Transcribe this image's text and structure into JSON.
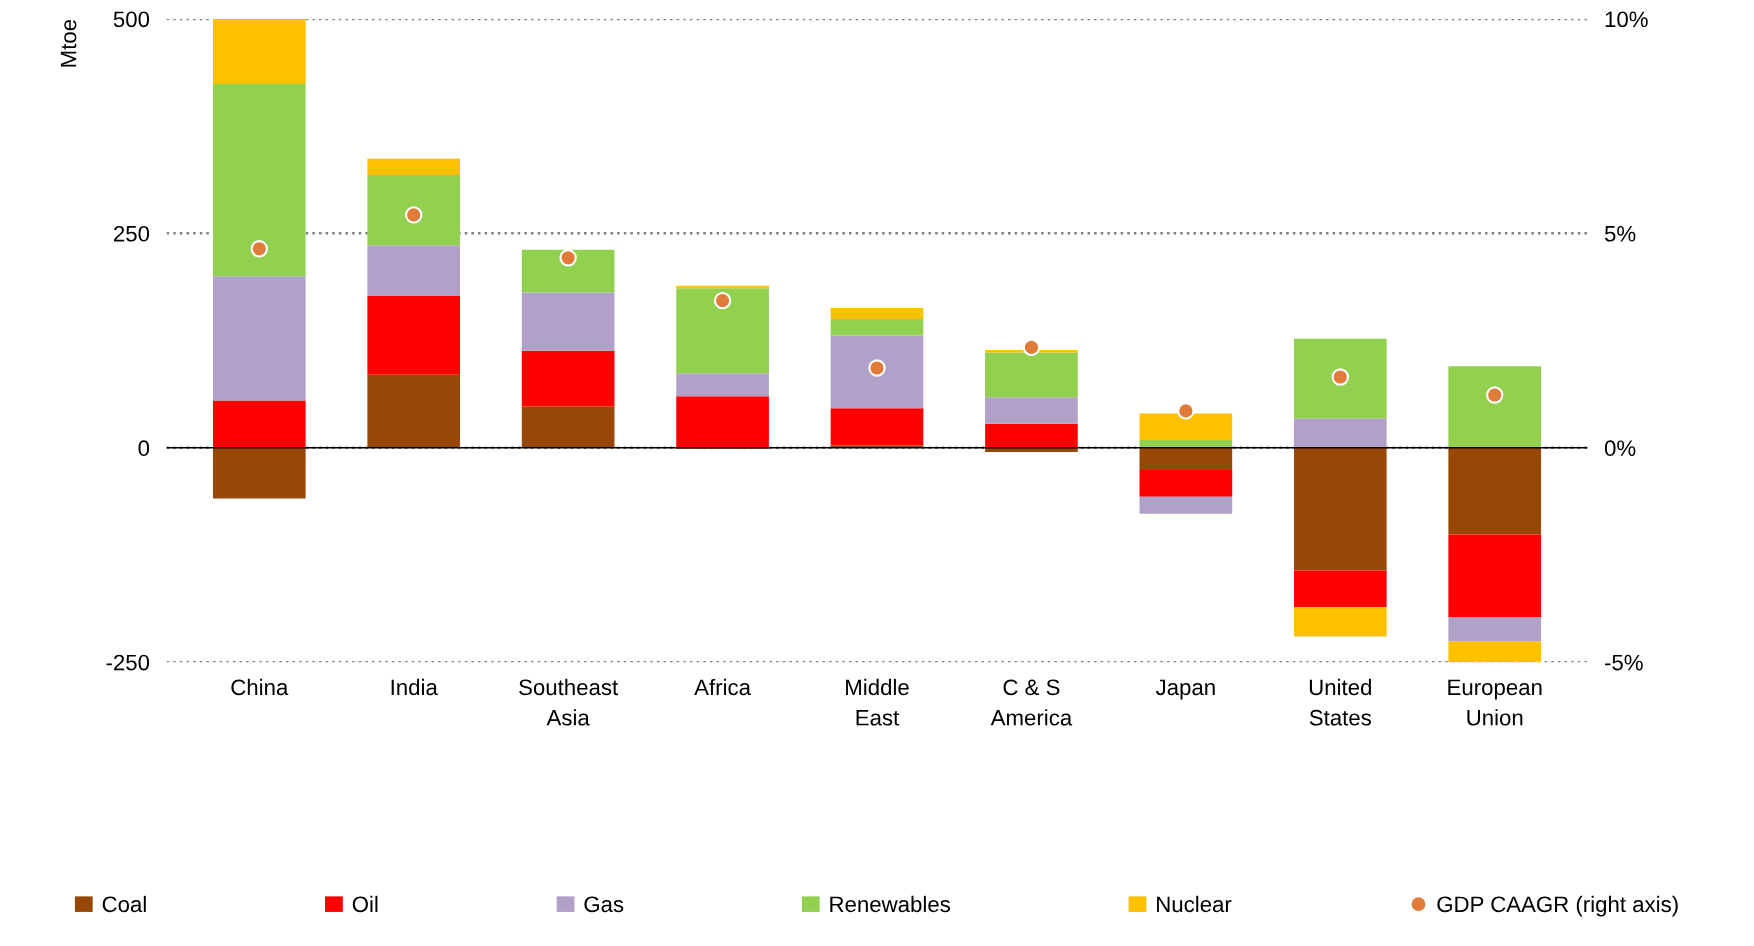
{
  "chart_data": {
    "type": "bar",
    "stacked": true,
    "ylabel": "Mtoe",
    "categories": [
      "China",
      "India",
      "Southeast\nAsia",
      "Africa",
      "Middle\nEast",
      "C & S\nAmerica",
      "Japan",
      "United\nStates",
      "European\nUnion"
    ],
    "series": [
      {
        "name": "Coal",
        "color": "#974706",
        "values": [
          -59,
          85,
          48,
          -1,
          3,
          -5,
          -26,
          -143,
          -101
        ]
      },
      {
        "name": "Oil",
        "color": "#ff0000",
        "values": [
          55,
          92,
          65,
          60,
          43,
          28,
          -31,
          -43,
          -97
        ]
      },
      {
        "name": "Gas",
        "color": "#b1a0c7",
        "values": [
          145,
          59,
          68,
          27,
          85,
          31,
          -20,
          34,
          -28
        ]
      },
      {
        "name": "Renewables",
        "color": "#92d050",
        "values": [
          224,
          82,
          50,
          99,
          19,
          52,
          9,
          93,
          95
        ]
      },
      {
        "name": "Nuclear",
        "color": "#ffc000",
        "values": [
          76,
          19,
          0,
          3,
          13,
          3,
          31,
          -34,
          -24
        ]
      },
      {
        "name": "GDP CAAGR (right axis)",
        "type": "scatter",
        "axis": "y2",
        "marker": "circle",
        "color": "#e07b39",
        "values": [
          4.64,
          5.43,
          4.43,
          3.43,
          1.86,
          2.34,
          0.86,
          1.65,
          1.23
        ]
      }
    ],
    "ylim": [
      -250,
      500
    ],
    "yticks": [
      -250,
      0,
      250,
      500
    ],
    "y2lim": [
      -5,
      10
    ],
    "y2ticks": [
      {
        "value": -5,
        "label": "-5%"
      },
      {
        "value": 0,
        "label": "0%"
      },
      {
        "value": 5,
        "label": "5%"
      },
      {
        "value": 10,
        "label": "10%"
      }
    ],
    "grid": "y",
    "legend": "bottom"
  }
}
